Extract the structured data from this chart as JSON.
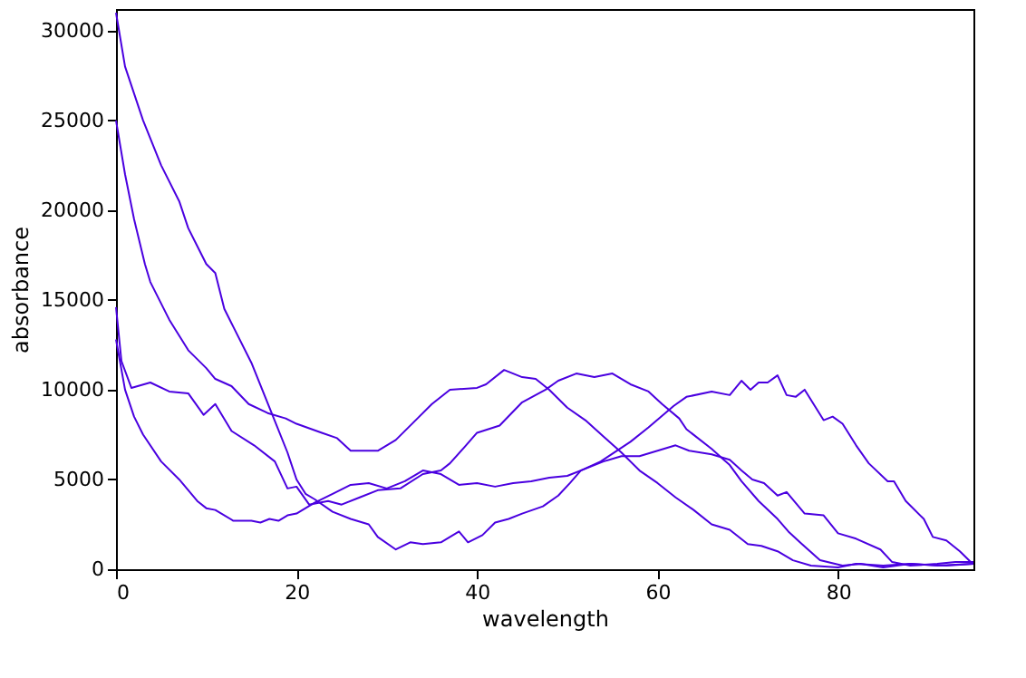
{
  "chart_data": {
    "type": "line",
    "xlabel": "wavelength",
    "ylabel": "absorbance",
    "xlim": [
      0,
      95
    ],
    "xticks": [
      0,
      20,
      40,
      60,
      80
    ],
    "ylim": [
      0,
      31200
    ],
    "yticks": [
      0,
      5000,
      10000,
      15000,
      20000,
      25000,
      30000
    ],
    "grid": false,
    "legend": false,
    "marker": "none",
    "line_style": "solid",
    "series": [
      {
        "color": "#4a00e0",
        "x": [
          0,
          1,
          3,
          5,
          7,
          8,
          10,
          11,
          12,
          13,
          15,
          17,
          19,
          20,
          21,
          22,
          24,
          26,
          28,
          29,
          31,
          32.6,
          34,
          36,
          38,
          39,
          40.6,
          42,
          43.5,
          45,
          47.3,
          49,
          50.3,
          51.5,
          53.7,
          57,
          59,
          61.8,
          63.2,
          66,
          68,
          69.3,
          70.3,
          71.2,
          72.2,
          73.3,
          74.3,
          75.3,
          76.3,
          78.4,
          79.4,
          80.5,
          82,
          83.4,
          85.5,
          86.2,
          87.5,
          89.5,
          90.5,
          92,
          93.5,
          94.7,
          95
        ],
        "values": [
          31000,
          28000,
          25000,
          22500,
          20500,
          19000,
          17000,
          16500,
          14500,
          13500,
          11500,
          9000,
          6500,
          5000,
          4200,
          3900,
          3200,
          2800,
          2500,
          1800,
          1100,
          1500,
          1400,
          1500,
          2100,
          1500,
          1900,
          2600,
          2800,
          3100,
          3500,
          4100,
          4800,
          5500,
          6000,
          7100,
          7900,
          9100,
          9600,
          9900,
          9700,
          10500,
          10000,
          10400,
          10400,
          10800,
          9700,
          9600,
          10000,
          8300,
          8500,
          8100,
          6900,
          5900,
          4900,
          4900,
          3800,
          2800,
          1800,
          1600,
          1000,
          400,
          400
        ]
      },
      {
        "color": "#4a00e0",
        "x": [
          0,
          1,
          2,
          3.2,
          3.8,
          5.9,
          8,
          10,
          11,
          12.8,
          14.7,
          16.8,
          18.8,
          20,
          22.8,
          24.5,
          26,
          29,
          31,
          33.4,
          35,
          37,
          40,
          41,
          43,
          45,
          46.5,
          48,
          50,
          52,
          54,
          56,
          58,
          60,
          62,
          64,
          66,
          68,
          70,
          71.5,
          73.3,
          75,
          77,
          80,
          82,
          85,
          88,
          91,
          95
        ],
        "values": [
          25000,
          22000,
          19500,
          17000,
          16000,
          13900,
          12200,
          11200,
          10600,
          10200,
          9200,
          8700,
          8400,
          8100,
          7600,
          7300,
          6600,
          6600,
          7200,
          8400,
          9200,
          10000,
          10100,
          10300,
          11100,
          10700,
          10600,
          10000,
          9000,
          8300,
          7400,
          6500,
          5500,
          4800,
          4000,
          3300,
          2500,
          2200,
          1400,
          1300,
          1000,
          500,
          200,
          100,
          300,
          200,
          300,
          200,
          300
        ]
      },
      {
        "color": "#4a00e0",
        "x": [
          0,
          0.6,
          1.7,
          3.8,
          5.9,
          8,
          9.7,
          11,
          12.8,
          15.3,
          17.6,
          19,
          20,
          21.4,
          23.5,
          25,
          27,
          29,
          31.5,
          34,
          36,
          37,
          38.6,
          40,
          42.5,
          45,
          47.6,
          49,
          51,
          53,
          55,
          57,
          59,
          60.5,
          62.4,
          63.2,
          66,
          68,
          69.3,
          71.2,
          73.3,
          74.5,
          76,
          78,
          80.5,
          82.5,
          85,
          88,
          92,
          95
        ],
        "values": [
          14600,
          11600,
          10100,
          10400,
          9900,
          9800,
          8600,
          9200,
          7700,
          6900,
          6000,
          4500,
          4600,
          3600,
          3800,
          3600,
          4000,
          4400,
          4500,
          5300,
          5500,
          5900,
          6800,
          7600,
          8000,
          9300,
          10000,
          10500,
          10900,
          10700,
          10900,
          10300,
          9900,
          9200,
          8400,
          7800,
          6700,
          5800,
          4900,
          3800,
          2800,
          2100,
          1400,
          500,
          200,
          300,
          100,
          300,
          200,
          300
        ]
      },
      {
        "color": "#4a00e0",
        "x": [
          0,
          1,
          2,
          3,
          5,
          7,
          9,
          10,
          11,
          13,
          15,
          16,
          17,
          18,
          19,
          20,
          22,
          24,
          26,
          28,
          30,
          32,
          34,
          36,
          38,
          40,
          42,
          44,
          46,
          48,
          50,
          52,
          54,
          56,
          58,
          60,
          62,
          63.5,
          66,
          68,
          69.3,
          70.5,
          71.8,
          73.3,
          74.3,
          76.3,
          78.4,
          80,
          82,
          84.7,
          86,
          88,
          91,
          93,
          95
        ],
        "values": [
          12800,
          10000,
          8500,
          7500,
          6000,
          5000,
          3800,
          3400,
          3300,
          2700,
          2700,
          2600,
          2800,
          2700,
          3000,
          3100,
          3700,
          4200,
          4700,
          4800,
          4500,
          4900,
          5500,
          5300,
          4700,
          4800,
          4600,
          4800,
          4900,
          5100,
          5200,
          5600,
          6000,
          6300,
          6300,
          6600,
          6900,
          6600,
          6400,
          6100,
          5500,
          5000,
          4800,
          4100,
          4300,
          3100,
          3000,
          2000,
          1700,
          1100,
          400,
          200,
          300,
          400,
          400
        ]
      }
    ]
  }
}
